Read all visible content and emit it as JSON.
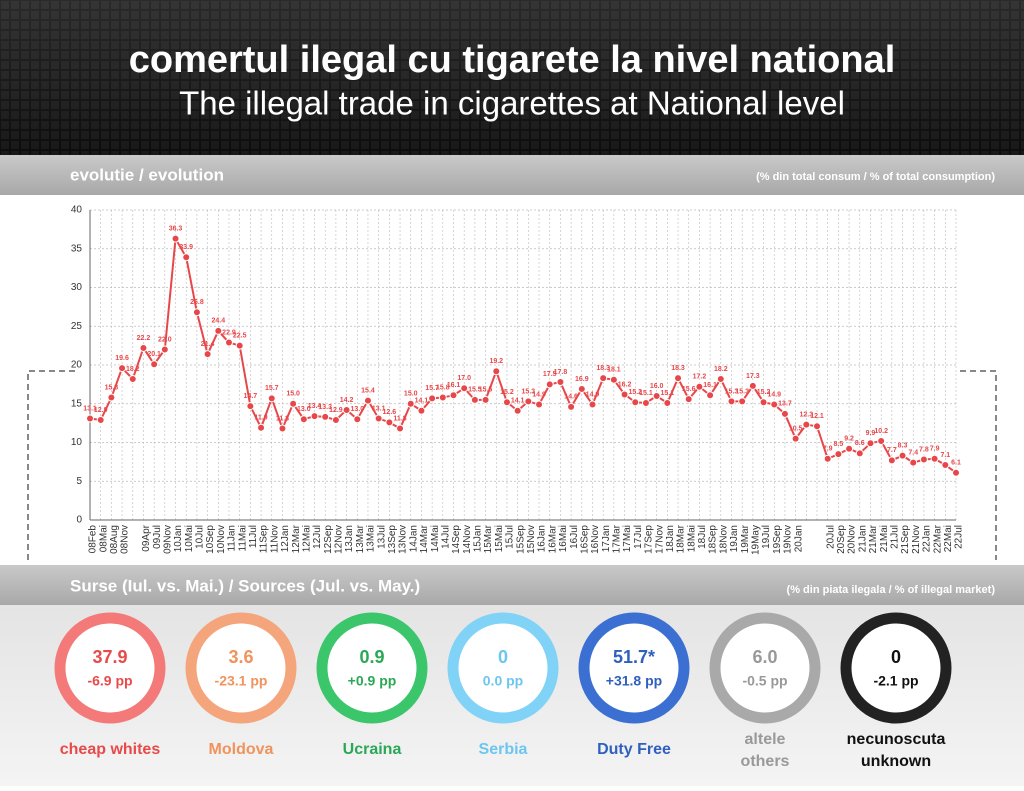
{
  "header": {
    "title": "comertul ilegal cu tigarete la nivel national",
    "subtitle": "The illegal trade in cigarettes at National level"
  },
  "evolution": {
    "title": "evolutie / evolution",
    "unit": "(% din total consum / % of total consumption)"
  },
  "chart_data": {
    "type": "line",
    "color": "#e8474a",
    "grid": true,
    "ylim": [
      0,
      40
    ],
    "yticks": [
      0,
      5,
      10,
      15,
      20,
      25,
      30,
      35,
      40
    ],
    "categories": [
      "08Feb",
      "08Mai",
      "08Aug",
      "08Nov",
      null,
      "09Apr",
      "09Jul",
      "09Nov",
      "10Jan",
      "10Mai",
      "10Jul",
      "10Sep",
      "10Nov",
      "11Jan",
      "11Mai",
      "11Jul",
      "11Sep",
      "11Nov",
      "12Jan",
      "12Mar",
      "12Mai",
      "12Jul",
      "12Sep",
      "12Nov",
      "13Jan",
      "13Mar",
      "13Mai",
      "13Jul",
      "13Sep",
      "13Nov",
      "14Jan",
      "14Mar",
      "14Mai",
      "14Jul",
      "14Sep",
      "14Nov",
      "15Jan",
      "15Mar",
      "15Mai",
      "15Jul",
      "15Sep",
      "15Nov",
      "16Jan",
      "16Mar",
      "16Mai",
      "16Jul",
      "16Sep",
      "16Nov",
      "17Jan",
      "17Mar",
      "17Mai",
      "17Jul",
      "17Sep",
      "17Nov",
      "18Jan",
      "18Mar",
      "18Mai",
      "18Jul",
      "18Sep",
      "18Nov",
      "19Jan",
      "19Mar",
      "19May",
      "19Jul",
      "19Sep",
      "19Nov",
      "20Jan",
      null,
      null,
      "20Jul",
      "20Sep",
      "20Nov",
      "21Jan",
      "21Mar",
      "21Mai",
      "21Jul",
      "21Sep",
      "21Nov",
      "22Jan",
      "22Mar",
      "22Mai",
      "22Jul"
    ],
    "values": [
      13.1,
      12.9,
      15.8,
      19.6,
      18.2,
      22.2,
      20.1,
      22.0,
      36.3,
      33.9,
      26.8,
      21.4,
      24.4,
      22.9,
      22.5,
      14.7,
      11.9,
      15.7,
      11.8,
      15.0,
      13.0,
      13.4,
      13.3,
      12.9,
      14.2,
      13.0,
      15.4,
      13.1,
      12.6,
      11.8,
      15.0,
      14.1,
      15.7,
      15.8,
      16.1,
      17.0,
      15.5,
      15.5,
      19.2,
      15.2,
      14.1,
      15.3,
      14.9,
      17.5,
      17.8,
      14.6,
      16.9,
      14.9,
      18.3,
      18.1,
      16.2,
      15.2,
      15.1,
      16.0,
      15.1,
      18.3,
      15.6,
      17.2,
      16.1,
      18.2,
      15.3,
      15.3,
      17.3,
      15.2,
      14.9,
      13.7,
      10.5,
      12.3,
      12.1,
      7.9,
      8.5,
      9.2,
      8.6,
      9.9,
      10.2,
      7.7,
      8.3,
      7.4,
      7.8,
      7.9,
      7.1,
      6.1
    ],
    "value_labels": [
      "13.1",
      "12.9",
      "15.8",
      "19.6",
      "18.2",
      "22.2",
      "20.1",
      "22.0",
      "36.3",
      "33.9",
      "26.8",
      "21.4",
      "24.4",
      "22.9",
      "22.5",
      "14.7",
      "11.9",
      "15.7",
      "11.8",
      "15.0",
      "13.0",
      "13.4",
      "13.3",
      "12.9",
      "14.2",
      "13.0",
      "15.4",
      "13.1",
      "12.6",
      "11.8",
      "15.0",
      "14.1",
      "15.7",
      "15.8",
      "16.1",
      "17.0",
      "15.5",
      "15.5",
      "19.2",
      "15.2",
      "14.1",
      "15.3",
      "14.9",
      "17.5",
      "17.8",
      "14.6",
      "16.9",
      "14.9",
      "18.3",
      "18.1",
      "16.2",
      "15.2",
      "15.1",
      "16.0",
      "15.1",
      "18.3",
      "15.6",
      "17.2",
      "16.1",
      "18.2",
      "15.3",
      "15.3",
      "17.3",
      "15.2",
      "14.9",
      "13.7",
      "10.5",
      "12.3",
      "12.1",
      "7.9",
      "8.5",
      "9.2",
      "8.6",
      "9.9",
      "10.2",
      "7.7",
      "8.3",
      "7.4",
      "7.8",
      "7.9",
      "7.1",
      "6.1"
    ]
  },
  "sources": {
    "title": "Surse (Iul. vs. Mai.) / Sources (Jul. vs. May.)",
    "unit": "(% din piata ilegala / % of illegal market)",
    "items": [
      {
        "value": "37.9",
        "change": "-6.9 pp",
        "name": [
          "cheap whites"
        ],
        "color": "#f47a7a",
        "text_color": "#e84a4a"
      },
      {
        "value": "3.6",
        "change": "-23.1 pp",
        "name": [
          "Moldova"
        ],
        "color": "#f5a57c",
        "text_color": "#f0935c"
      },
      {
        "value": "0.9",
        "change": "+0.9 pp",
        "name": [
          "Ucraina"
        ],
        "color": "#3cc66b",
        "text_color": "#2aa856"
      },
      {
        "value": "0",
        "change": "0.0 pp",
        "name": [
          "Serbia"
        ],
        "color": "#80d2f6",
        "text_color": "#6cc6f0"
      },
      {
        "value": "51.7*",
        "change": "+31.8 pp",
        "name": [
          "Duty Free"
        ],
        "color": "#3b6fd2",
        "text_color": "#2f5fbf"
      },
      {
        "value": "6.0",
        "change": "-0.5 pp",
        "name": [
          "altele",
          "others"
        ],
        "color": "#a9a9a9",
        "text_color": "#999999"
      },
      {
        "value": "0",
        "change": "-2.1 pp",
        "name": [
          "necunoscuta",
          "unknown"
        ],
        "color": "#222222",
        "text_color": "#111111"
      }
    ]
  }
}
